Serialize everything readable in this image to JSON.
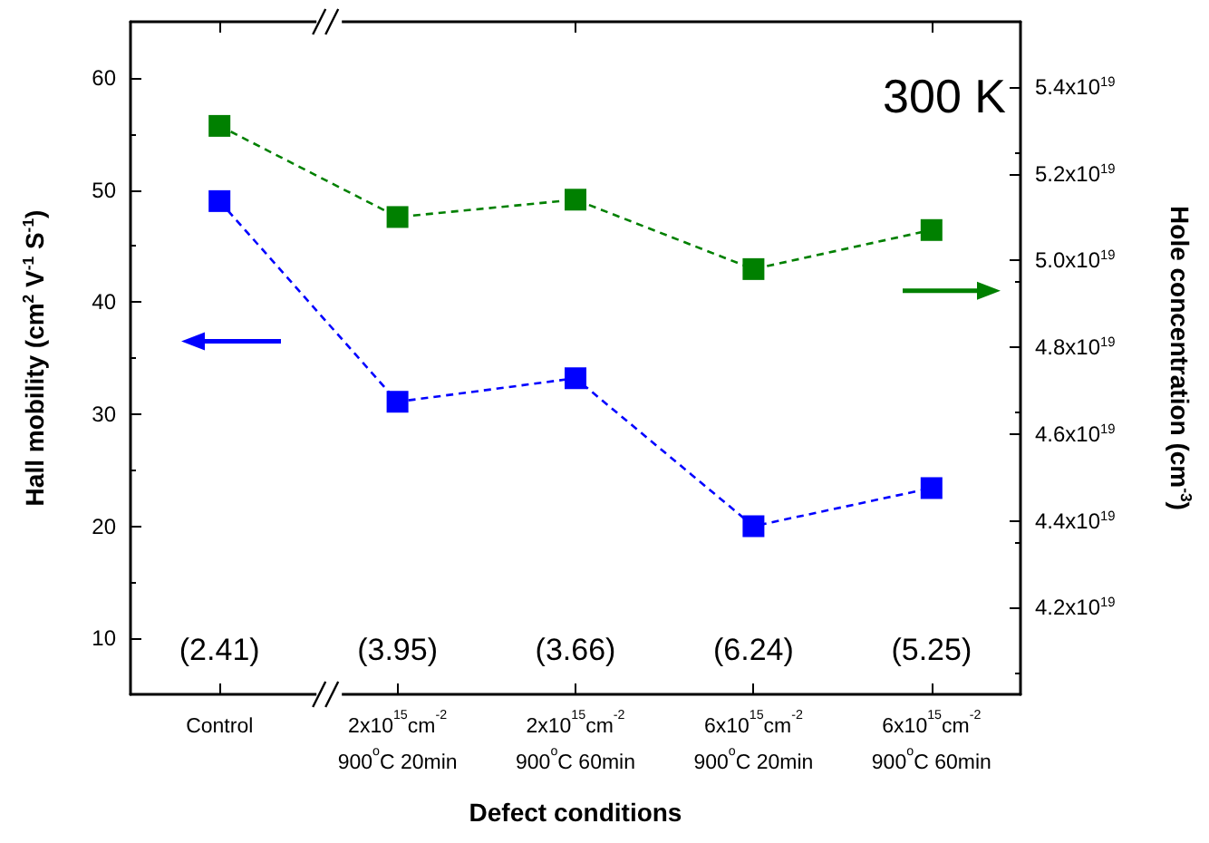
{
  "chart_data": {
    "type": "line",
    "xlabel": "Defect conditions",
    "ylabel": "Hall mobility (cm$^{2}$ V$^{-1}$ S$^{-1}$)",
    "y2label": "Hole concentration (cm$^{-3}$)",
    "categories": [
      "Control",
      "2x10$^{15}$cm$^{-2}$\n900$^{o}$C 20min",
      "2x10$^{15}$cm$^{-2}$\n900$^{o}$C 60min",
      "6x10$^{15}$cm$^{-2}$\n900$^{o}$C 20min",
      "6x10$^{15}$cm$^{-2}$\n900$^{o}$C 60min"
    ],
    "series": [
      {
        "color": "#0000ff",
        "values": [
          49.0,
          31.1,
          33.2,
          20.0,
          23.4
        ]
      },
      {
        "color": "#008000",
        "axis": "y2",
        "values": [
          5.31e+19,
          5.1e+19,
          5.14e+19,
          4.98e+19,
          5.07e+19
        ]
      }
    ],
    "ylim": [
      5,
      65
    ],
    "yticks": [
      10,
      20,
      30,
      40,
      50,
      60
    ],
    "y2lim": [
      4e+19,
      5.55e+19
    ],
    "y2ticks": [
      {
        "value": 4.2e+19,
        "label": "4.2x10$^{19}$"
      },
      {
        "value": 4.4e+19,
        "label": "4.4x10$^{19}$"
      },
      {
        "value": 4.6e+19,
        "label": "4.6x10$^{19}$"
      },
      {
        "value": 4.8e+19,
        "label": "4.8x10$^{19}$"
      },
      {
        "value": 5e+19,
        "label": "5.0x10$^{19}$"
      },
      {
        "value": 5.2e+19,
        "label": "5.2x10$^{19}$"
      },
      {
        "value": 5.4e+19,
        "label": "5.4x10$^{19}$"
      }
    ],
    "annotations": [
      "300 K",
      "(2.41)",
      "(3.95)",
      "(3.66)",
      "(6.24)",
      "(5.25)"
    ],
    "grid": false,
    "marker": "square",
    "line_style": "dashed"
  }
}
